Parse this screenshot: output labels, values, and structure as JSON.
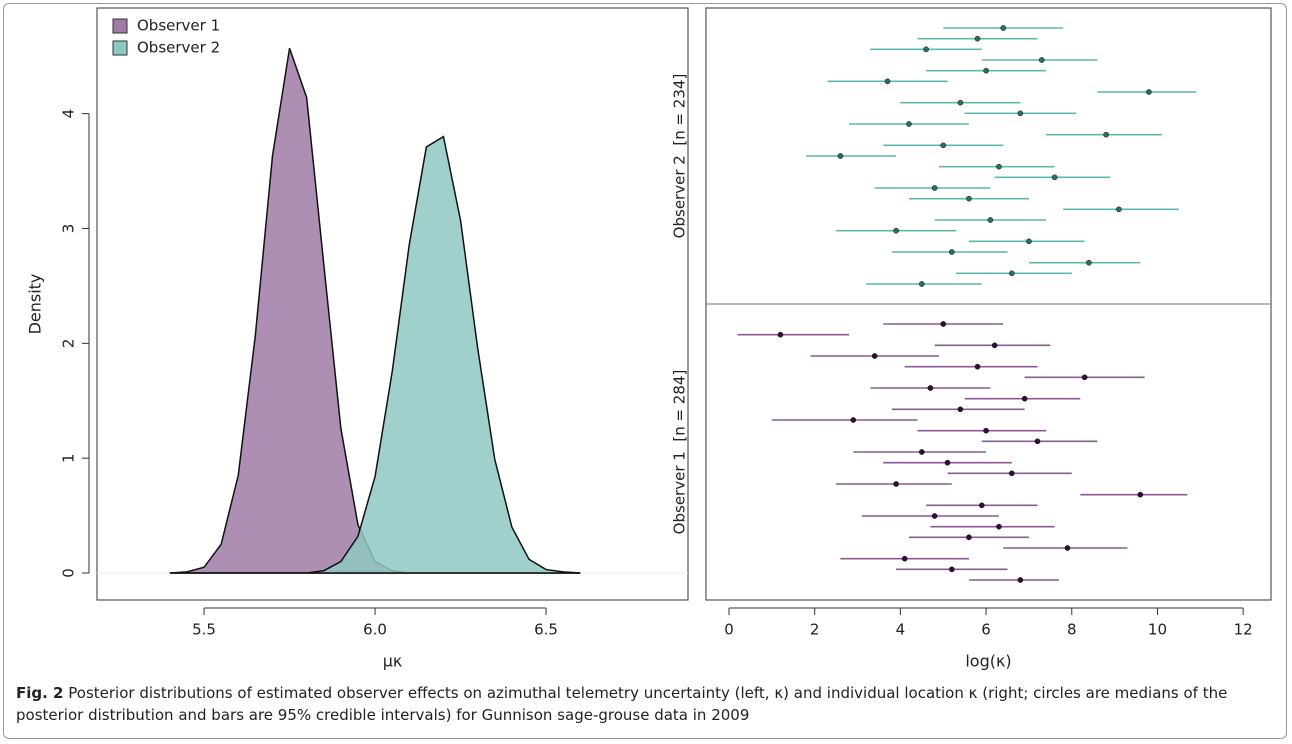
{
  "chart_data": [
    {
      "type": "area",
      "y_label": "Density",
      "x_label": "μκ",
      "x": [
        5.4,
        5.45,
        5.5,
        5.55,
        5.6,
        5.65,
        5.7,
        5.75,
        5.8,
        5.85,
        5.9,
        5.95,
        6.0,
        6.05,
        6.1,
        6.15,
        6.2,
        6.25,
        6.3,
        6.35,
        6.4,
        6.45,
        6.5,
        6.55,
        6.6
      ],
      "series": [
        {
          "name": "Observer 1",
          "color": "#9e7ba5",
          "values": [
            0,
            0.01,
            0.05,
            0.25,
            0.85,
            2.07,
            3.63,
            4.57,
            4.14,
            2.69,
            1.26,
            0.42,
            0.1,
            0.02,
            0,
            0,
            0,
            0,
            0,
            0,
            0,
            0,
            0,
            0,
            0
          ]
        },
        {
          "name": "Observer 2",
          "color": "#8ec8c3",
          "values": [
            0,
            0,
            0,
            0,
            0,
            0,
            0,
            0,
            0,
            0.02,
            0.1,
            0.32,
            0.84,
            1.75,
            2.86,
            3.71,
            3.8,
            3.07,
            1.96,
            0.99,
            0.4,
            0.12,
            0.03,
            0.01,
            0
          ]
        }
      ],
      "xlim": [
        5.187,
        6.915
      ],
      "ylim": [
        -0.235,
        4.92
      ],
      "xticks": [
        5.5,
        {
          "value": 6,
          "label": "6.0"
        },
        6.5
      ],
      "yticks": [
        0,
        1,
        2,
        3,
        4
      ],
      "legend": "top-left"
    },
    {
      "type": "interval",
      "x_label": "log(κ)",
      "xlim": [
        -0.537,
        12.65
      ],
      "xticks": [
        0,
        2,
        4,
        6,
        8,
        10,
        12
      ],
      "series": [
        {
          "name": "Observer 1  [n = 284]",
          "color": "#8a5a96",
          "point_color": "#2d0f3a",
          "values": [
            6.8,
            5.2,
            4.1,
            7.9,
            5.6,
            6.3,
            4.8,
            5.9,
            9.6,
            3.9,
            6.6,
            5.1,
            4.5,
            7.2,
            6.0,
            2.9,
            5.4,
            6.9,
            4.7,
            8.3,
            5.8,
            3.4,
            6.2,
            1.2,
            5.0
          ],
          "lower": [
            5.6,
            3.9,
            2.6,
            6.4,
            4.2,
            4.7,
            3.1,
            4.6,
            8.2,
            2.5,
            5.1,
            3.6,
            2.9,
            5.9,
            4.4,
            1.0,
            3.8,
            5.5,
            3.3,
            6.9,
            4.1,
            1.9,
            4.8,
            0.2,
            3.6
          ],
          "upper": [
            7.7,
            6.5,
            5.6,
            9.3,
            7.0,
            7.6,
            6.3,
            7.2,
            10.7,
            5.2,
            8.0,
            6.6,
            6.0,
            8.6,
            7.4,
            4.4,
            6.9,
            8.2,
            6.1,
            9.7,
            7.2,
            4.9,
            7.5,
            2.8,
            6.4
          ]
        },
        {
          "name": "Observer 2  [n = 234]",
          "color": "#5fb7b0",
          "point_color": "#2a6e6a",
          "values": [
            4.5,
            6.6,
            8.4,
            5.2,
            7.0,
            3.9,
            6.1,
            9.1,
            5.6,
            4.8,
            7.6,
            6.3,
            2.6,
            5.0,
            8.8,
            4.2,
            6.8,
            5.4,
            9.8,
            3.7,
            6.0,
            7.3,
            4.6,
            5.8,
            6.4
          ],
          "lower": [
            3.2,
            5.3,
            7.0,
            3.8,
            5.6,
            2.5,
            4.8,
            7.8,
            4.2,
            3.4,
            6.2,
            4.9,
            1.8,
            3.6,
            7.4,
            2.8,
            5.5,
            4.0,
            8.6,
            2.3,
            4.6,
            5.9,
            3.3,
            4.4,
            5.0
          ],
          "upper": [
            5.9,
            8.0,
            9.6,
            6.5,
            8.3,
            5.3,
            7.4,
            10.5,
            7.0,
            6.1,
            8.9,
            7.6,
            3.9,
            6.4,
            10.1,
            5.6,
            8.1,
            6.8,
            10.9,
            5.1,
            7.4,
            8.6,
            5.9,
            7.2,
            7.8
          ]
        }
      ]
    }
  ],
  "caption": {
    "label": "Fig. 2",
    "text": "Posterior distributions of estimated observer effects on azimuthal telemetry uncertainty (left, κ) and individual location κ (right; circles are medians of the posterior distribution and bars are 95% credible intervals) for Gunnison sage-grouse data in 2009"
  }
}
